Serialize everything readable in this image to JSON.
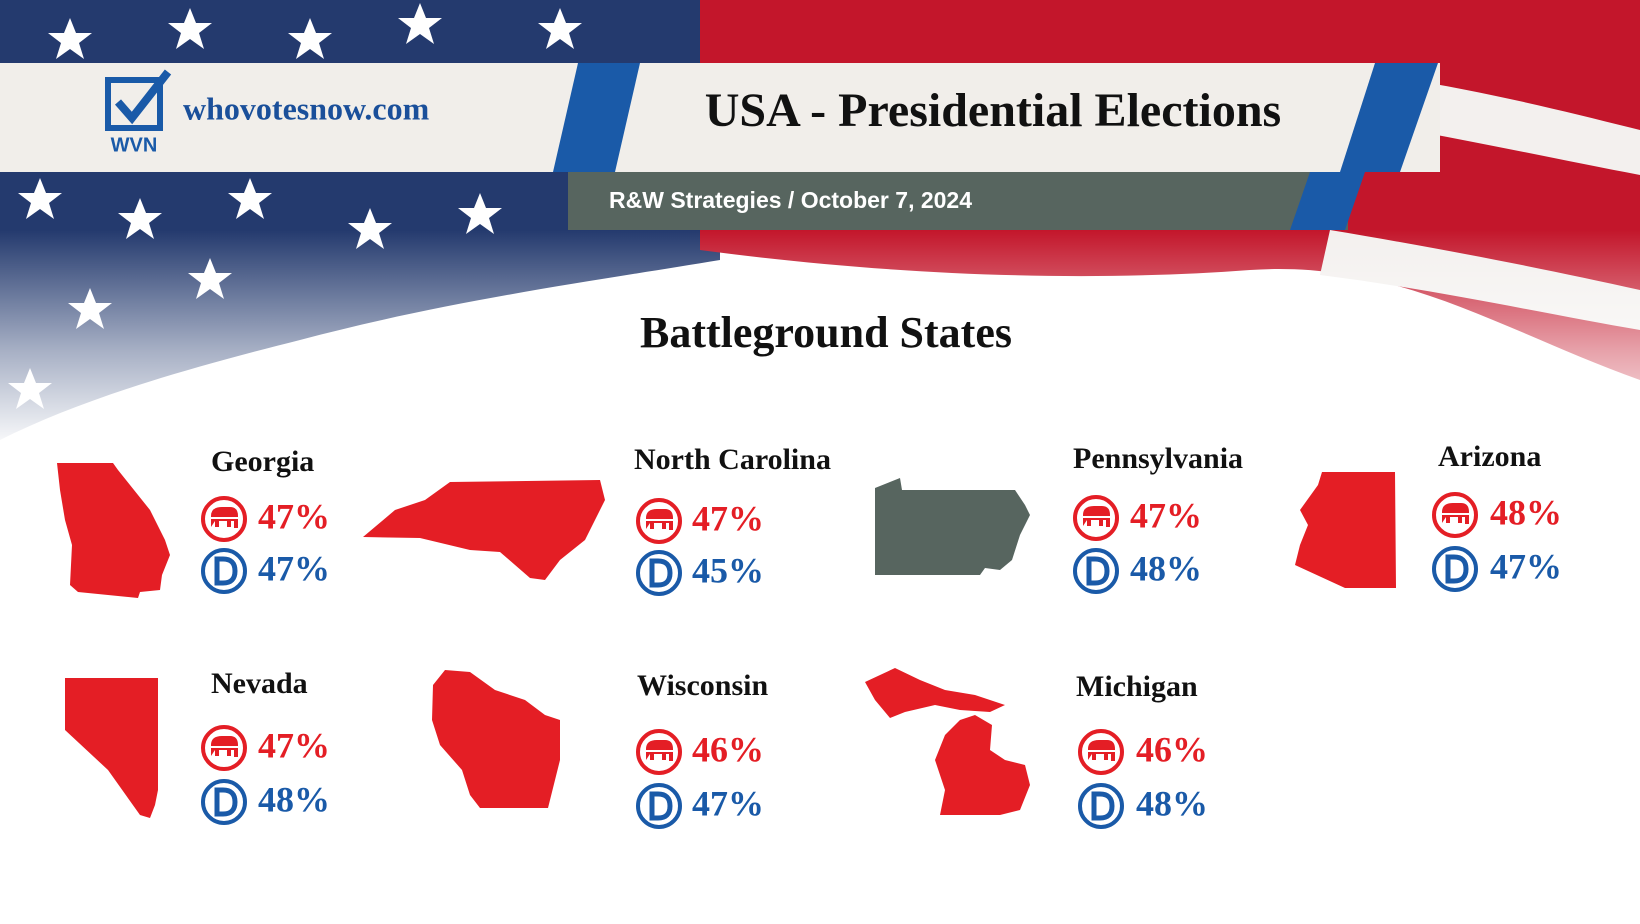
{
  "header": {
    "logo": "WVN",
    "site": "whovotesnow.com",
    "title": "USA - Presidential Elections",
    "subtitle": "R&W Strategies / October 7, 2024"
  },
  "heading": "Battleground States",
  "states": [
    {
      "name": "Georgia",
      "rep": "47%",
      "dem": "47%"
    },
    {
      "name": "North Carolina",
      "rep": "47%",
      "dem": "45%"
    },
    {
      "name": "Pennsylvania",
      "rep": "47%",
      "dem": "48%"
    },
    {
      "name": "Arizona",
      "rep": "48%",
      "dem": "47%"
    },
    {
      "name": "Nevada",
      "rep": "47%",
      "dem": "48%"
    },
    {
      "name": "Wisconsin",
      "rep": "46%",
      "dem": "47%"
    },
    {
      "name": "Michigan",
      "rep": "46%",
      "dem": "48%"
    }
  ]
}
